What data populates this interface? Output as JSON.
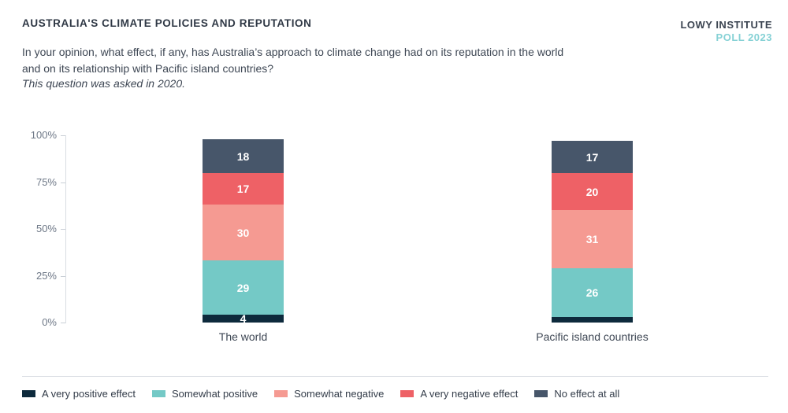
{
  "header": {
    "title": "AUSTRALIA'S CLIMATE POLICIES AND REPUTATION",
    "question_line1": "In your opinion, what effect, if any, has Australia’s approach to climate change had on its reputation in the world",
    "question_line2": "and on its relationship with Pacific island countries?",
    "note": "This question was asked in 2020.",
    "brand_line1": "LOWY INSTITUTE",
    "brand_line2": "POLL 2023",
    "brand_color": "#85D1D5"
  },
  "chart_data": {
    "type": "bar",
    "variant": "stacked-percentage-column",
    "categories": [
      "The world",
      "Pacific island countries"
    ],
    "series": [
      {
        "name": "A very positive effect",
        "color": "#0D2A3C",
        "values": [
          4,
          3
        ],
        "labels_shown": [
          true,
          false
        ]
      },
      {
        "name": "Somewhat positive",
        "color": "#74C9C6",
        "values": [
          29,
          26
        ],
        "labels_shown": [
          true,
          true
        ]
      },
      {
        "name": "Somewhat negative",
        "color": "#F59A92",
        "values": [
          30,
          31
        ],
        "labels_shown": [
          true,
          true
        ]
      },
      {
        "name": "A very negative effect",
        "color": "#EE6166",
        "values": [
          17,
          20
        ],
        "labels_shown": [
          true,
          true
        ]
      },
      {
        "name": "No effect at all",
        "color": "#47566A",
        "values": [
          18,
          17
        ],
        "labels_shown": [
          true,
          true
        ]
      }
    ],
    "y_axis": {
      "min": 0,
      "max": 100,
      "ticks": [
        {
          "label": "0%",
          "value": 0
        },
        {
          "label": "25%",
          "value": 25
        },
        {
          "label": "50%",
          "value": 50
        },
        {
          "label": "75%",
          "value": 75
        },
        {
          "label": "100%",
          "value": 100
        }
      ]
    },
    "grid": false,
    "legend_position": "bottom",
    "bar_value_label_color": "#FFFFFF"
  }
}
